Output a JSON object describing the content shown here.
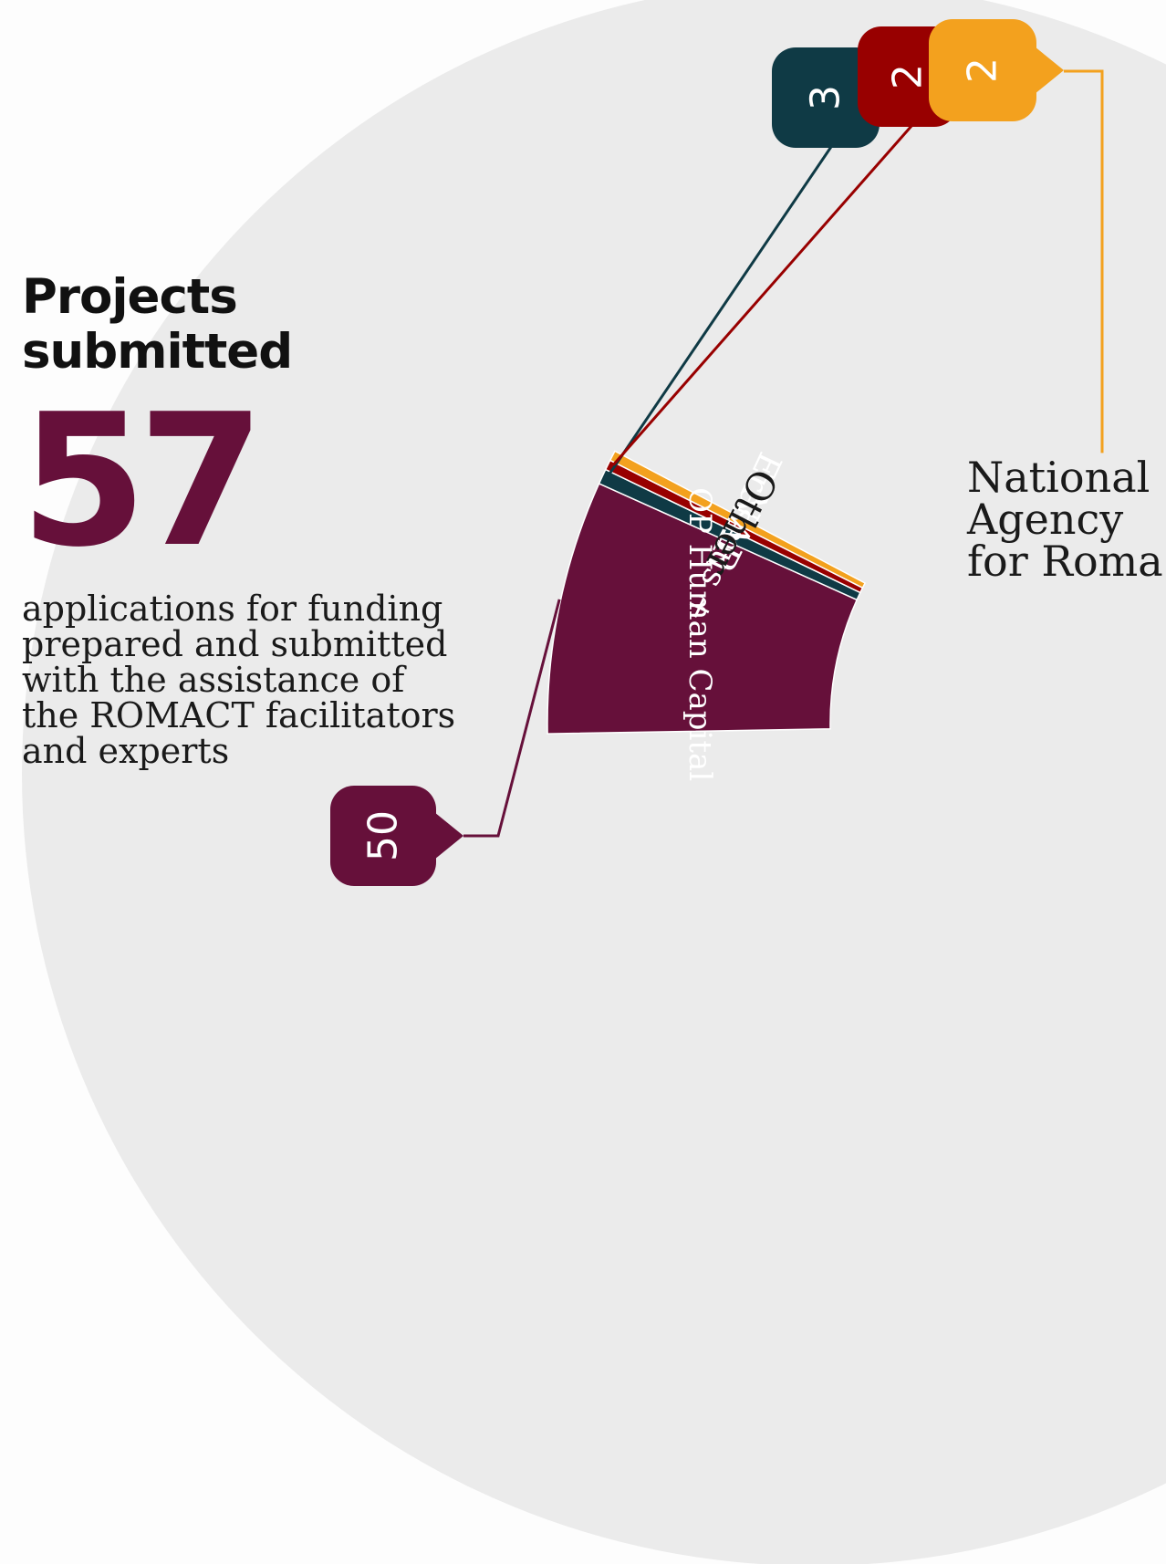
{
  "heading": {
    "line1": "Projects",
    "line2": "submitted"
  },
  "total": "57",
  "description": [
    "applications for funding",
    "prepared and submitted",
    "with the assistance of",
    "the ROMACT facilitators",
    "and experts"
  ],
  "center_label": [
    "National",
    "Agency",
    "for Roma"
  ],
  "colors": {
    "background_disc": "#ebebeb",
    "op_human_capital": "#66103a",
    "erasmus": "#0f3a45",
    "nar": "#980000",
    "other": "#f3a11e"
  },
  "chart_data": {
    "type": "pie",
    "variant": "donut",
    "total": 57,
    "slices": [
      {
        "label": "OP Human Capital",
        "value": 50,
        "color": "#66103a"
      },
      {
        "label": "Erasmus +",
        "value": 3,
        "color": "#0f3a45"
      },
      {
        "label": "NAR",
        "value": 2,
        "color": "#980000"
      },
      {
        "label": "Other",
        "value": 2,
        "color": "#f3a11e"
      }
    ]
  }
}
